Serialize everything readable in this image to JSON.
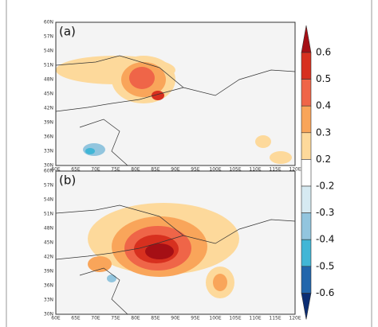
{
  "panels": [
    {
      "label": "(a)"
    },
    {
      "label": "(b)"
    }
  ],
  "lat_ticks": [
    "60N",
    "57N",
    "54N",
    "51N",
    "48N",
    "45N",
    "42N",
    "39N",
    "36N",
    "33N",
    "30N"
  ],
  "lon_ticks": [
    "60E",
    "65E",
    "70E",
    "75E",
    "80E",
    "85E",
    "90E",
    "95E",
    "100E",
    "105E",
    "110E",
    "115E",
    "120E"
  ],
  "colorbar": {
    "ticks": [
      0.6,
      0.5,
      0.4,
      0.3,
      0.2,
      -0.2,
      -0.3,
      -0.4,
      -0.5,
      -0.6
    ],
    "colors": [
      "#a50f15",
      "#d7301f",
      "#ef6548",
      "#f9a55a",
      "#fdd99b",
      "#ffffff",
      "#d6eaf2",
      "#92c5de",
      "#41b6d6",
      "#2166ac",
      "#0b2d73"
    ]
  }
}
